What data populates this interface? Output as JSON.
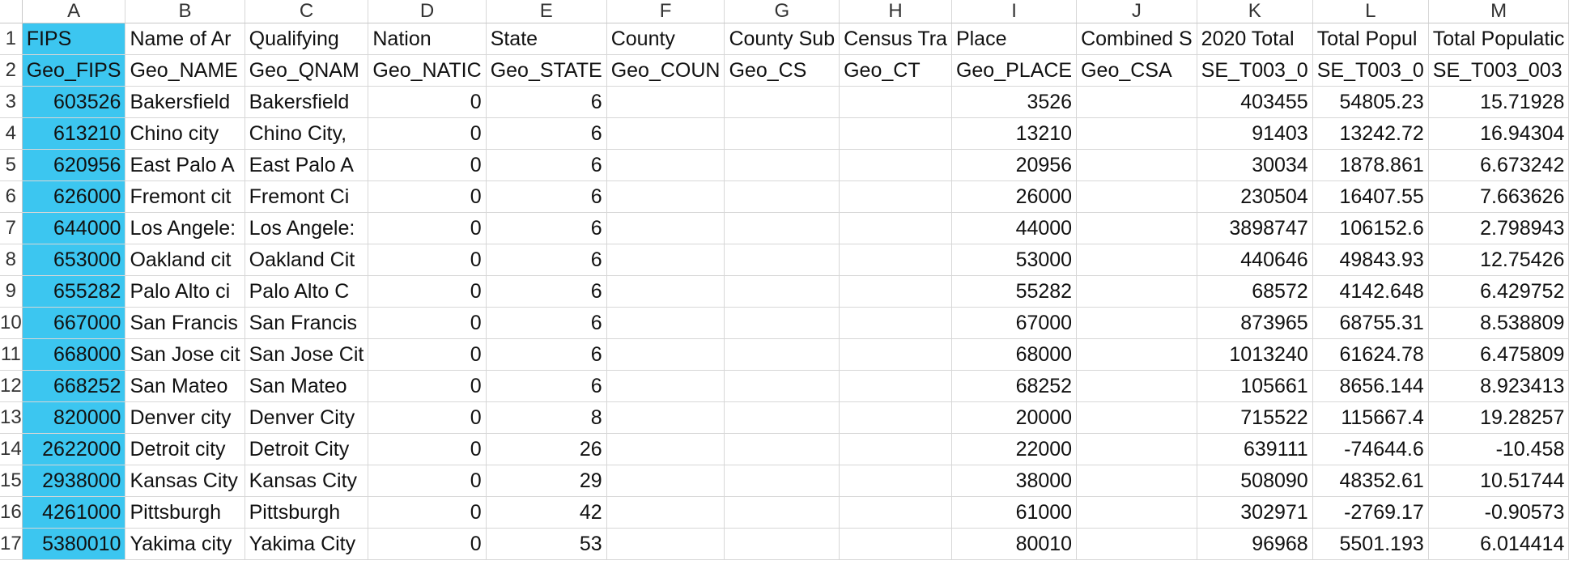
{
  "column_letters": [
    "A",
    "B",
    "C",
    "D",
    "E",
    "F",
    "G",
    "H",
    "I",
    "J",
    "K",
    "L",
    "M"
  ],
  "row_numbers": [
    "1",
    "2",
    "3",
    "4",
    "5",
    "6",
    "7",
    "8",
    "9",
    "10",
    "11",
    "12",
    "13",
    "14",
    "15",
    "16",
    "17"
  ],
  "highlight_color": "#3cc6f0",
  "rows": [
    [
      "FIPS",
      "Name of Ar",
      "Qualifying",
      "Nation",
      "State",
      "County",
      "County Sub",
      "Census Tra",
      "Place",
      "Combined S",
      "2020 Total",
      "Total Popul",
      "Total Populatic"
    ],
    [
      "Geo_FIPS",
      "Geo_NAME",
      "Geo_QNAM",
      "Geo_NATIC",
      "Geo_STATE",
      "Geo_COUN",
      "Geo_CS",
      "Geo_CT",
      "Geo_PLACE",
      "Geo_CSA",
      "SE_T003_0",
      "SE_T003_0",
      "SE_T003_003"
    ],
    [
      "603526",
      "Bakersfield",
      "Bakersfield",
      "0",
      "6",
      "",
      "",
      "",
      "3526",
      "",
      "403455",
      "54805.23",
      "15.71928"
    ],
    [
      "613210",
      "Chino city",
      "Chino City,",
      "0",
      "6",
      "",
      "",
      "",
      "13210",
      "",
      "91403",
      "13242.72",
      "16.94304"
    ],
    [
      "620956",
      "East Palo A",
      "East Palo A",
      "0",
      "6",
      "",
      "",
      "",
      "20956",
      "",
      "30034",
      "1878.861",
      "6.673242"
    ],
    [
      "626000",
      "Fremont cit",
      "Fremont Ci",
      "0",
      "6",
      "",
      "",
      "",
      "26000",
      "",
      "230504",
      "16407.55",
      "7.663626"
    ],
    [
      "644000",
      "Los Angele:",
      "Los Angele:",
      "0",
      "6",
      "",
      "",
      "",
      "44000",
      "",
      "3898747",
      "106152.6",
      "2.798943"
    ],
    [
      "653000",
      "Oakland cit",
      "Oakland Cit",
      "0",
      "6",
      "",
      "",
      "",
      "53000",
      "",
      "440646",
      "49843.93",
      "12.75426"
    ],
    [
      "655282",
      "Palo Alto ci",
      "Palo Alto C",
      "0",
      "6",
      "",
      "",
      "",
      "55282",
      "",
      "68572",
      "4142.648",
      "6.429752"
    ],
    [
      "667000",
      "San Francis",
      "San Francis",
      "0",
      "6",
      "",
      "",
      "",
      "67000",
      "",
      "873965",
      "68755.31",
      "8.538809"
    ],
    [
      "668000",
      "San Jose cit",
      "San Jose Cit",
      "0",
      "6",
      "",
      "",
      "",
      "68000",
      "",
      "1013240",
      "61624.78",
      "6.475809"
    ],
    [
      "668252",
      "San Mateo",
      "San Mateo",
      "0",
      "6",
      "",
      "",
      "",
      "68252",
      "",
      "105661",
      "8656.144",
      "8.923413"
    ],
    [
      "820000",
      "Denver city",
      "Denver City",
      "0",
      "8",
      "",
      "",
      "",
      "20000",
      "",
      "715522",
      "115667.4",
      "19.28257"
    ],
    [
      "2622000",
      "Detroit city",
      "Detroit City",
      "0",
      "26",
      "",
      "",
      "",
      "22000",
      "",
      "639111",
      "-74644.6",
      "-10.458"
    ],
    [
      "2938000",
      "Kansas City",
      "Kansas City",
      "0",
      "29",
      "",
      "",
      "",
      "38000",
      "",
      "508090",
      "48352.61",
      "10.51744"
    ],
    [
      "4261000",
      "Pittsburgh",
      "Pittsburgh",
      "0",
      "42",
      "",
      "",
      "",
      "61000",
      "",
      "302971",
      "-2769.17",
      "-0.90573"
    ],
    [
      "5380010",
      "Yakima city",
      "Yakima City",
      "0",
      "53",
      "",
      "",
      "",
      "80010",
      "",
      "96968",
      "5501.193",
      "6.014414"
    ]
  ]
}
